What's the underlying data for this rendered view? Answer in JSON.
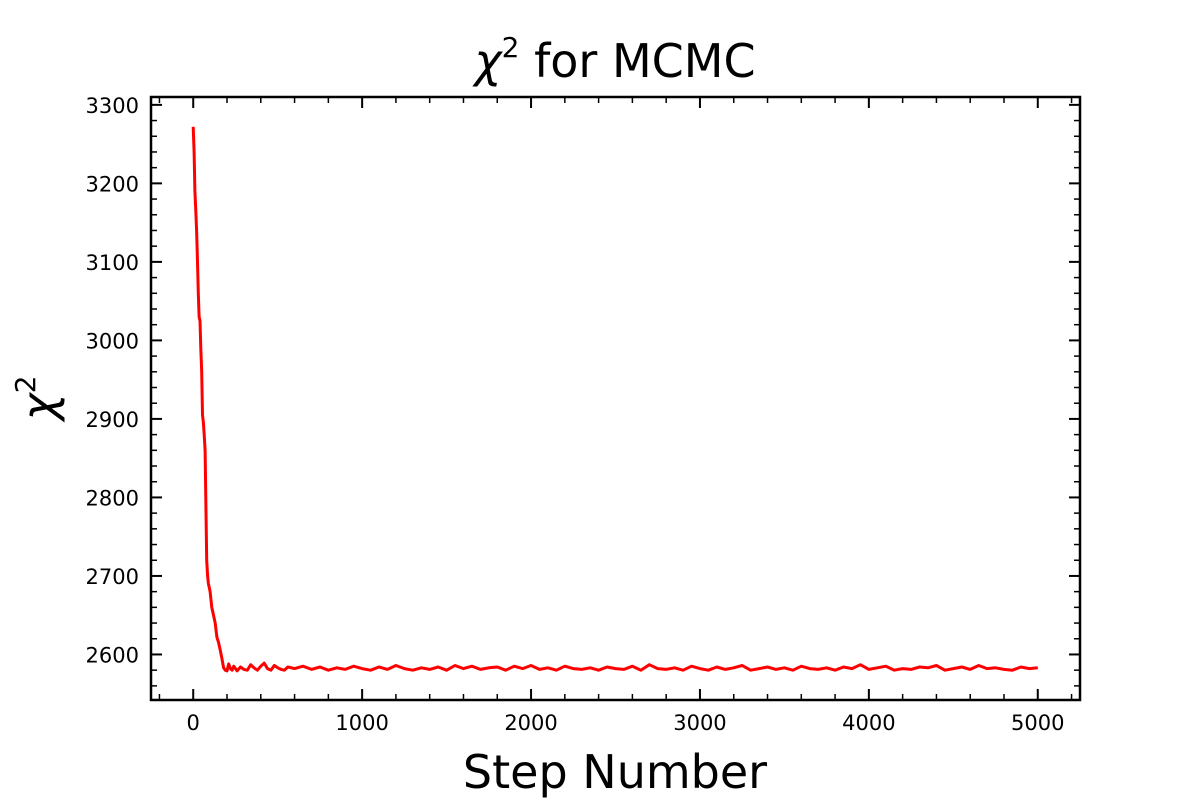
{
  "chart_data": {
    "type": "line",
    "title": {
      "symbol": "χ",
      "sup": "2",
      "rest": " for MCMC"
    },
    "xlabel": "Step Number",
    "ylabel": {
      "symbol": "χ",
      "sup": "2"
    },
    "xlim": [
      -250,
      5250
    ],
    "ylim": [
      2542,
      3310
    ],
    "xticks": [
      0,
      1000,
      2000,
      3000,
      4000,
      5000
    ],
    "yticks": [
      2600,
      2700,
      2800,
      2900,
      3000,
      3100,
      3200,
      3300
    ],
    "x_minor_step": 200,
    "y_minor_step": 20,
    "grid": false,
    "series": [
      {
        "color": "#ff0000",
        "x": [
          0,
          5,
          10,
          15,
          20,
          25,
          30,
          35,
          40,
          45,
          50,
          55,
          60,
          65,
          70,
          75,
          80,
          85,
          90,
          95,
          100,
          110,
          120,
          130,
          140,
          150,
          160,
          170,
          180,
          190,
          200,
          210,
          220,
          230,
          240,
          260,
          280,
          300,
          320,
          340,
          360,
          380,
          400,
          420,
          440,
          460,
          480,
          500,
          520,
          540,
          560,
          600,
          650,
          700,
          750,
          800,
          850,
          900,
          950,
          1000,
          1050,
          1100,
          1150,
          1200,
          1250,
          1300,
          1350,
          1400,
          1450,
          1500,
          1550,
          1600,
          1650,
          1700,
          1750,
          1800,
          1850,
          1900,
          1950,
          2000,
          2050,
          2100,
          2150,
          2200,
          2250,
          2300,
          2350,
          2400,
          2450,
          2500,
          2550,
          2600,
          2650,
          2700,
          2750,
          2800,
          2850,
          2900,
          2950,
          3000,
          3050,
          3100,
          3150,
          3200,
          3250,
          3300,
          3350,
          3400,
          3450,
          3500,
          3550,
          3600,
          3650,
          3700,
          3750,
          3800,
          3850,
          3900,
          3950,
          4000,
          4050,
          4100,
          4150,
          4200,
          4250,
          4300,
          4350,
          4400,
          4450,
          4500,
          4550,
          4600,
          4650,
          4700,
          4750,
          4800,
          4850,
          4900,
          4950,
          5000
        ],
        "y": [
          3272,
          3240,
          3190,
          3165,
          3140,
          3105,
          3060,
          3030,
          3025,
          2990,
          2960,
          2905,
          2895,
          2880,
          2860,
          2790,
          2720,
          2700,
          2690,
          2685,
          2680,
          2660,
          2650,
          2640,
          2622,
          2615,
          2605,
          2595,
          2583,
          2580,
          2579,
          2588,
          2582,
          2580,
          2585,
          2579,
          2584,
          2581,
          2580,
          2587,
          2583,
          2580,
          2585,
          2589,
          2582,
          2580,
          2586,
          2583,
          2581,
          2580,
          2584,
          2582,
          2585,
          2581,
          2584,
          2580,
          2583,
          2581,
          2585,
          2582,
          2580,
          2584,
          2581,
          2586,
          2582,
          2580,
          2583,
          2581,
          2584,
          2580,
          2586,
          2582,
          2585,
          2581,
          2583,
          2584,
          2580,
          2585,
          2582,
          2586,
          2581,
          2583,
          2580,
          2585,
          2582,
          2581,
          2583,
          2580,
          2584,
          2582,
          2581,
          2585,
          2580,
          2587,
          2582,
          2581,
          2583,
          2580,
          2585,
          2582,
          2580,
          2584,
          2581,
          2583,
          2586,
          2580,
          2582,
          2584,
          2581,
          2583,
          2580,
          2585,
          2582,
          2581,
          2583,
          2580,
          2584,
          2582,
          2587,
          2581,
          2583,
          2585,
          2580,
          2582,
          2581,
          2584,
          2583,
          2586,
          2580,
          2582,
          2584,
          2581,
          2586,
          2582,
          2583,
          2581,
          2580,
          2584,
          2582,
          2583
        ]
      }
    ]
  }
}
